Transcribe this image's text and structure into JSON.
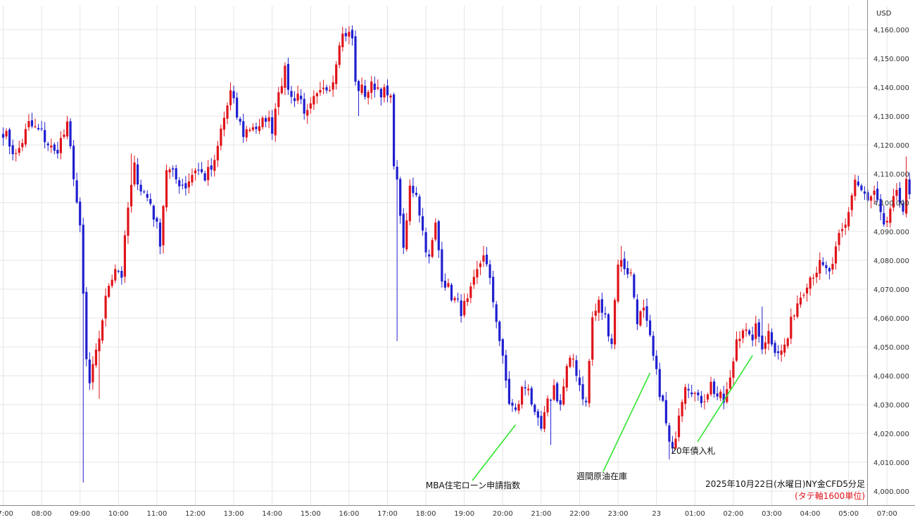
{
  "chart_data": {
    "type": "candlestick",
    "currency_label": "USD",
    "y_ticks": [
      "4,000.000",
      "4,010.000",
      "4,020.000",
      "4,030.000",
      "4,040.000",
      "4,050.000",
      "4,060.000",
      "4,070.000",
      "4,080.000",
      "4,090.000",
      "4,100.000",
      "4,110.000",
      "4,120.000",
      "4,130.000",
      "4,140.000",
      "4,150.000",
      "4,160.000"
    ],
    "y_tick_values": [
      4000,
      4010,
      4020,
      4030,
      4040,
      4050,
      4060,
      4070,
      4080,
      4090,
      4100,
      4110,
      4120,
      4130,
      4140,
      4150,
      4160
    ],
    "ylim": [
      3997.5,
      4166
    ],
    "x_ticks": [
      {
        "label": "07:00",
        "bar": 0
      },
      {
        "label": "08:00",
        "bar": 12
      },
      {
        "label": "09:00",
        "bar": 24
      },
      {
        "label": "10:00",
        "bar": 36
      },
      {
        "label": "11:00",
        "bar": 48
      },
      {
        "label": "12:00",
        "bar": 60
      },
      {
        "label": "13:00",
        "bar": 72
      },
      {
        "label": "14:00",
        "bar": 84
      },
      {
        "label": "15:00",
        "bar": 96
      },
      {
        "label": "16:00",
        "bar": 108
      },
      {
        "label": "17:00",
        "bar": 120
      },
      {
        "label": "18:00",
        "bar": 132
      },
      {
        "label": "19:00",
        "bar": 144
      },
      {
        "label": "20:00",
        "bar": 156
      },
      {
        "label": "21:00",
        "bar": 168
      },
      {
        "label": "22:00",
        "bar": 180
      },
      {
        "label": "23:00",
        "bar": 192
      },
      {
        "label": "23",
        "bar": 204
      },
      {
        "label": "01:00",
        "bar": 216
      },
      {
        "label": "02:00",
        "bar": 228
      },
      {
        "label": "03:00",
        "bar": 240
      },
      {
        "label": "04:00",
        "bar": 252
      },
      {
        "label": "05:00",
        "bar": 264
      },
      {
        "label": "07:00",
        "bar": 276
      }
    ],
    "anchors": [
      {
        "bar": 0,
        "price": 4125
      },
      {
        "bar": 4,
        "price": 4116
      },
      {
        "bar": 8,
        "price": 4127
      },
      {
        "bar": 12,
        "price": 4124
      },
      {
        "bar": 16,
        "price": 4117
      },
      {
        "bar": 20,
        "price": 4126
      },
      {
        "bar": 22,
        "price": 4110
      },
      {
        "bar": 24,
        "price": 4090
      },
      {
        "bar": 26,
        "price": 4045
      },
      {
        "bar": 27,
        "price": 4037
      },
      {
        "bar": 29,
        "price": 4047
      },
      {
        "bar": 31,
        "price": 4060
      },
      {
        "bar": 33,
        "price": 4072
      },
      {
        "bar": 35,
        "price": 4078
      },
      {
        "bar": 37,
        "price": 4075
      },
      {
        "bar": 39,
        "price": 4098
      },
      {
        "bar": 41,
        "price": 4112
      },
      {
        "bar": 43,
        "price": 4105
      },
      {
        "bar": 46,
        "price": 4100
      },
      {
        "bar": 49,
        "price": 4087
      },
      {
        "bar": 51,
        "price": 4112
      },
      {
        "bar": 54,
        "price": 4108
      },
      {
        "bar": 57,
        "price": 4106
      },
      {
        "bar": 60,
        "price": 4112
      },
      {
        "bar": 63,
        "price": 4109
      },
      {
        "bar": 66,
        "price": 4113
      },
      {
        "bar": 68,
        "price": 4125
      },
      {
        "bar": 71,
        "price": 4138
      },
      {
        "bar": 73,
        "price": 4130
      },
      {
        "bar": 75,
        "price": 4124
      },
      {
        "bar": 78,
        "price": 4127
      },
      {
        "bar": 80,
        "price": 4125
      },
      {
        "bar": 82,
        "price": 4130
      },
      {
        "bar": 84,
        "price": 4126
      },
      {
        "bar": 86,
        "price": 4140
      },
      {
        "bar": 88,
        "price": 4145
      },
      {
        "bar": 90,
        "price": 4136
      },
      {
        "bar": 92,
        "price": 4138
      },
      {
        "bar": 95,
        "price": 4130
      },
      {
        "bar": 97,
        "price": 4135
      },
      {
        "bar": 99,
        "price": 4137
      },
      {
        "bar": 101,
        "price": 4140
      },
      {
        "bar": 103,
        "price": 4143
      },
      {
        "bar": 105,
        "price": 4157
      },
      {
        "bar": 107,
        "price": 4159
      },
      {
        "bar": 109,
        "price": 4157
      },
      {
        "bar": 110,
        "price": 4141
      },
      {
        "bar": 113,
        "price": 4138
      },
      {
        "bar": 116,
        "price": 4141
      },
      {
        "bar": 119,
        "price": 4138
      },
      {
        "bar": 121,
        "price": 4135
      },
      {
        "bar": 122,
        "price": 4115
      },
      {
        "bar": 124,
        "price": 4097
      },
      {
        "bar": 125,
        "price": 4082
      },
      {
        "bar": 127,
        "price": 4105
      },
      {
        "bar": 129,
        "price": 4104
      },
      {
        "bar": 131,
        "price": 4090
      },
      {
        "bar": 133,
        "price": 4080
      },
      {
        "bar": 135,
        "price": 4092
      },
      {
        "bar": 137,
        "price": 4075
      },
      {
        "bar": 139,
        "price": 4070
      },
      {
        "bar": 141,
        "price": 4066
      },
      {
        "bar": 143,
        "price": 4063
      },
      {
        "bar": 145,
        "price": 4065
      },
      {
        "bar": 147,
        "price": 4072
      },
      {
        "bar": 150,
        "price": 4083
      },
      {
        "bar": 152,
        "price": 4072
      },
      {
        "bar": 154,
        "price": 4060
      },
      {
        "bar": 156,
        "price": 4045
      },
      {
        "bar": 158,
        "price": 4031
      },
      {
        "bar": 160,
        "price": 4027
      },
      {
        "bar": 162,
        "price": 4035
      },
      {
        "bar": 164,
        "price": 4037
      },
      {
        "bar": 166,
        "price": 4025
      },
      {
        "bar": 168,
        "price": 4021
      },
      {
        "bar": 170,
        "price": 4030
      },
      {
        "bar": 172,
        "price": 4036
      },
      {
        "bar": 174,
        "price": 4030
      },
      {
        "bar": 176,
        "price": 4042
      },
      {
        "bar": 178,
        "price": 4046
      },
      {
        "bar": 180,
        "price": 4037
      },
      {
        "bar": 182,
        "price": 4030
      },
      {
        "bar": 184,
        "price": 4060
      },
      {
        "bar": 186,
        "price": 4065
      },
      {
        "bar": 188,
        "price": 4060
      },
      {
        "bar": 190,
        "price": 4052
      },
      {
        "bar": 192,
        "price": 4080
      },
      {
        "bar": 194,
        "price": 4078
      },
      {
        "bar": 196,
        "price": 4075
      },
      {
        "bar": 198,
        "price": 4060
      },
      {
        "bar": 200,
        "price": 4062
      },
      {
        "bar": 202,
        "price": 4052
      },
      {
        "bar": 204,
        "price": 4040
      },
      {
        "bar": 206,
        "price": 4030
      },
      {
        "bar": 208,
        "price": 4016
      },
      {
        "bar": 209,
        "price": 4013
      },
      {
        "bar": 211,
        "price": 4028
      },
      {
        "bar": 213,
        "price": 4038
      },
      {
        "bar": 215,
        "price": 4036
      },
      {
        "bar": 217,
        "price": 4031
      },
      {
        "bar": 219,
        "price": 4033
      },
      {
        "bar": 221,
        "price": 4037
      },
      {
        "bar": 223,
        "price": 4033
      },
      {
        "bar": 225,
        "price": 4031
      },
      {
        "bar": 227,
        "price": 4038
      },
      {
        "bar": 229,
        "price": 4053
      },
      {
        "bar": 231,
        "price": 4057
      },
      {
        "bar": 233,
        "price": 4052
      },
      {
        "bar": 235,
        "price": 4056
      },
      {
        "bar": 237,
        "price": 4051
      },
      {
        "bar": 239,
        "price": 4055
      },
      {
        "bar": 241,
        "price": 4050
      },
      {
        "bar": 243,
        "price": 4048
      },
      {
        "bar": 245,
        "price": 4053
      },
      {
        "bar": 247,
        "price": 4063
      },
      {
        "bar": 249,
        "price": 4068
      },
      {
        "bar": 251,
        "price": 4073
      },
      {
        "bar": 253,
        "price": 4076
      },
      {
        "bar": 255,
        "price": 4078
      },
      {
        "bar": 257,
        "price": 4076
      },
      {
        "bar": 259,
        "price": 4077
      },
      {
        "bar": 261,
        "price": 4088
      },
      {
        "bar": 263,
        "price": 4092
      },
      {
        "bar": 265,
        "price": 4103
      },
      {
        "bar": 266,
        "price": 4108
      },
      {
        "bar": 268,
        "price": 4104
      },
      {
        "bar": 270,
        "price": 4100
      },
      {
        "bar": 272,
        "price": 4103
      },
      {
        "bar": 274,
        "price": 4095
      },
      {
        "bar": 275,
        "price": 4090
      },
      {
        "bar": 277,
        "price": 4098
      },
      {
        "bar": 279,
        "price": 4102
      },
      {
        "bar": 281,
        "price": 4099
      },
      {
        "bar": 282,
        "price": 4109
      },
      {
        "bar": 283,
        "price": 4101
      }
    ],
    "wick_spikes": [
      {
        "bar": 25,
        "low": 4003
      },
      {
        "bar": 30,
        "low": 4032
      },
      {
        "bar": 40,
        "high": 4117
      },
      {
        "bar": 66,
        "low": 4109
      },
      {
        "bar": 106,
        "high": 4161
      },
      {
        "bar": 111,
        "low": 4130
      },
      {
        "bar": 123,
        "low": 4052
      },
      {
        "bar": 150,
        "high": 4085
      },
      {
        "bar": 171,
        "low": 4016
      },
      {
        "bar": 193,
        "high": 4085
      },
      {
        "bar": 208,
        "low": 4011
      },
      {
        "bar": 237,
        "high": 4064
      },
      {
        "bar": 282,
        "high": 4116
      }
    ],
    "annotations": [
      {
        "text": "MBA住宅ローン申請指数",
        "bar": 160,
        "price": 4023
      },
      {
        "text": "週間原油在庫",
        "bar": 202,
        "price": 4041
      },
      {
        "text": "20年債入札",
        "bar": 234,
        "price": 4047
      }
    ],
    "caption_main": "2025年10月22日(水曜日)NY金CFD5分足",
    "caption_sub": "(タテ軸1600単位)",
    "colors": {
      "up": "#e0131a",
      "down": "#1f1fd0",
      "grid": "#e4e4e4",
      "axis_line": "#8a8a8a",
      "annotation_line": "#2ee62e",
      "caption_sub": "#e0131a"
    }
  }
}
